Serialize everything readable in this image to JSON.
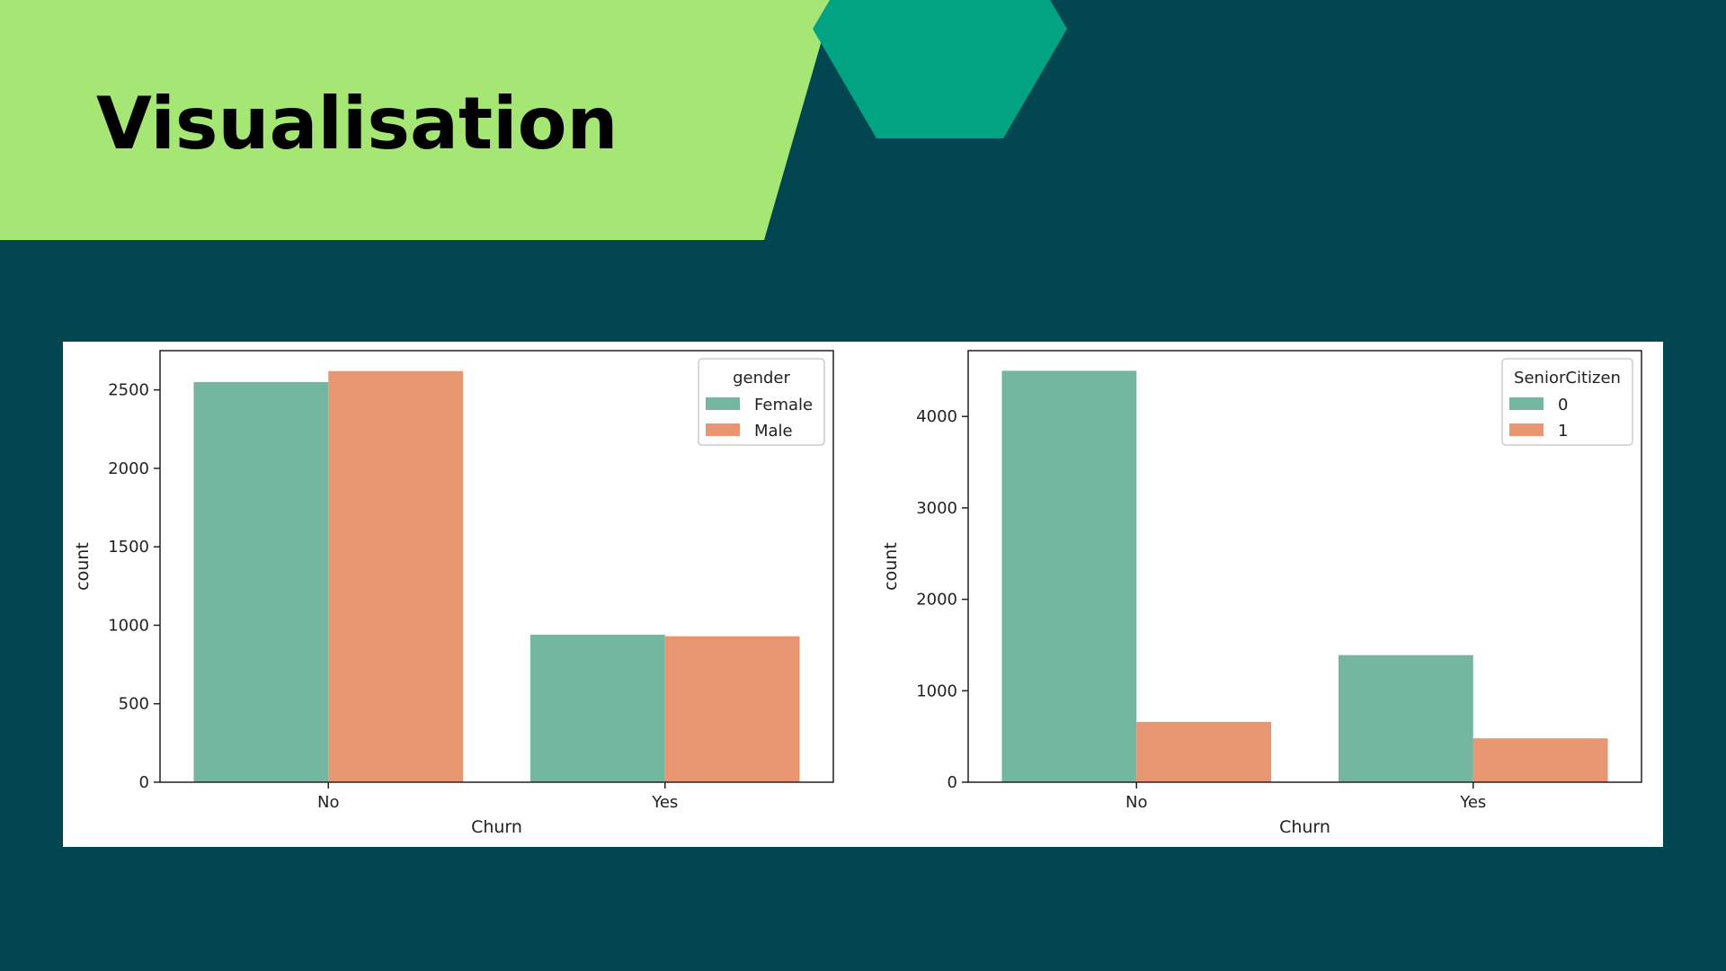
{
  "slide": {
    "title": "Visualisation",
    "colors": {
      "background": "#014651",
      "banner": "#a5e675",
      "hexagon": "#01a383"
    }
  },
  "chart_data": [
    {
      "type": "bar",
      "title": "",
      "xlabel": "Churn",
      "ylabel": "count",
      "categories": [
        "No",
        "Yes"
      ],
      "legend_title": "gender",
      "legend_position": "top-right",
      "grid": false,
      "ylim": [
        0,
        2750
      ],
      "yticks": [
        0,
        500,
        1000,
        1500,
        2000,
        2500
      ],
      "series": [
        {
          "name": "Female",
          "values": [
            2550,
            940
          ],
          "color": "#75b6a1"
        },
        {
          "name": "Male",
          "values": [
            2620,
            930
          ],
          "color": "#e89672"
        }
      ]
    },
    {
      "type": "bar",
      "title": "",
      "xlabel": "Churn",
      "ylabel": "count",
      "categories": [
        "No",
        "Yes"
      ],
      "legend_title": "SeniorCitizen",
      "legend_position": "top-right",
      "grid": false,
      "ylim": [
        0,
        4720
      ],
      "yticks": [
        0,
        1000,
        2000,
        3000,
        4000
      ],
      "series": [
        {
          "name": "0",
          "values": [
            4500,
            1390
          ],
          "color": "#75b6a1"
        },
        {
          "name": "1",
          "values": [
            660,
            480
          ],
          "color": "#e89672"
        }
      ]
    }
  ]
}
